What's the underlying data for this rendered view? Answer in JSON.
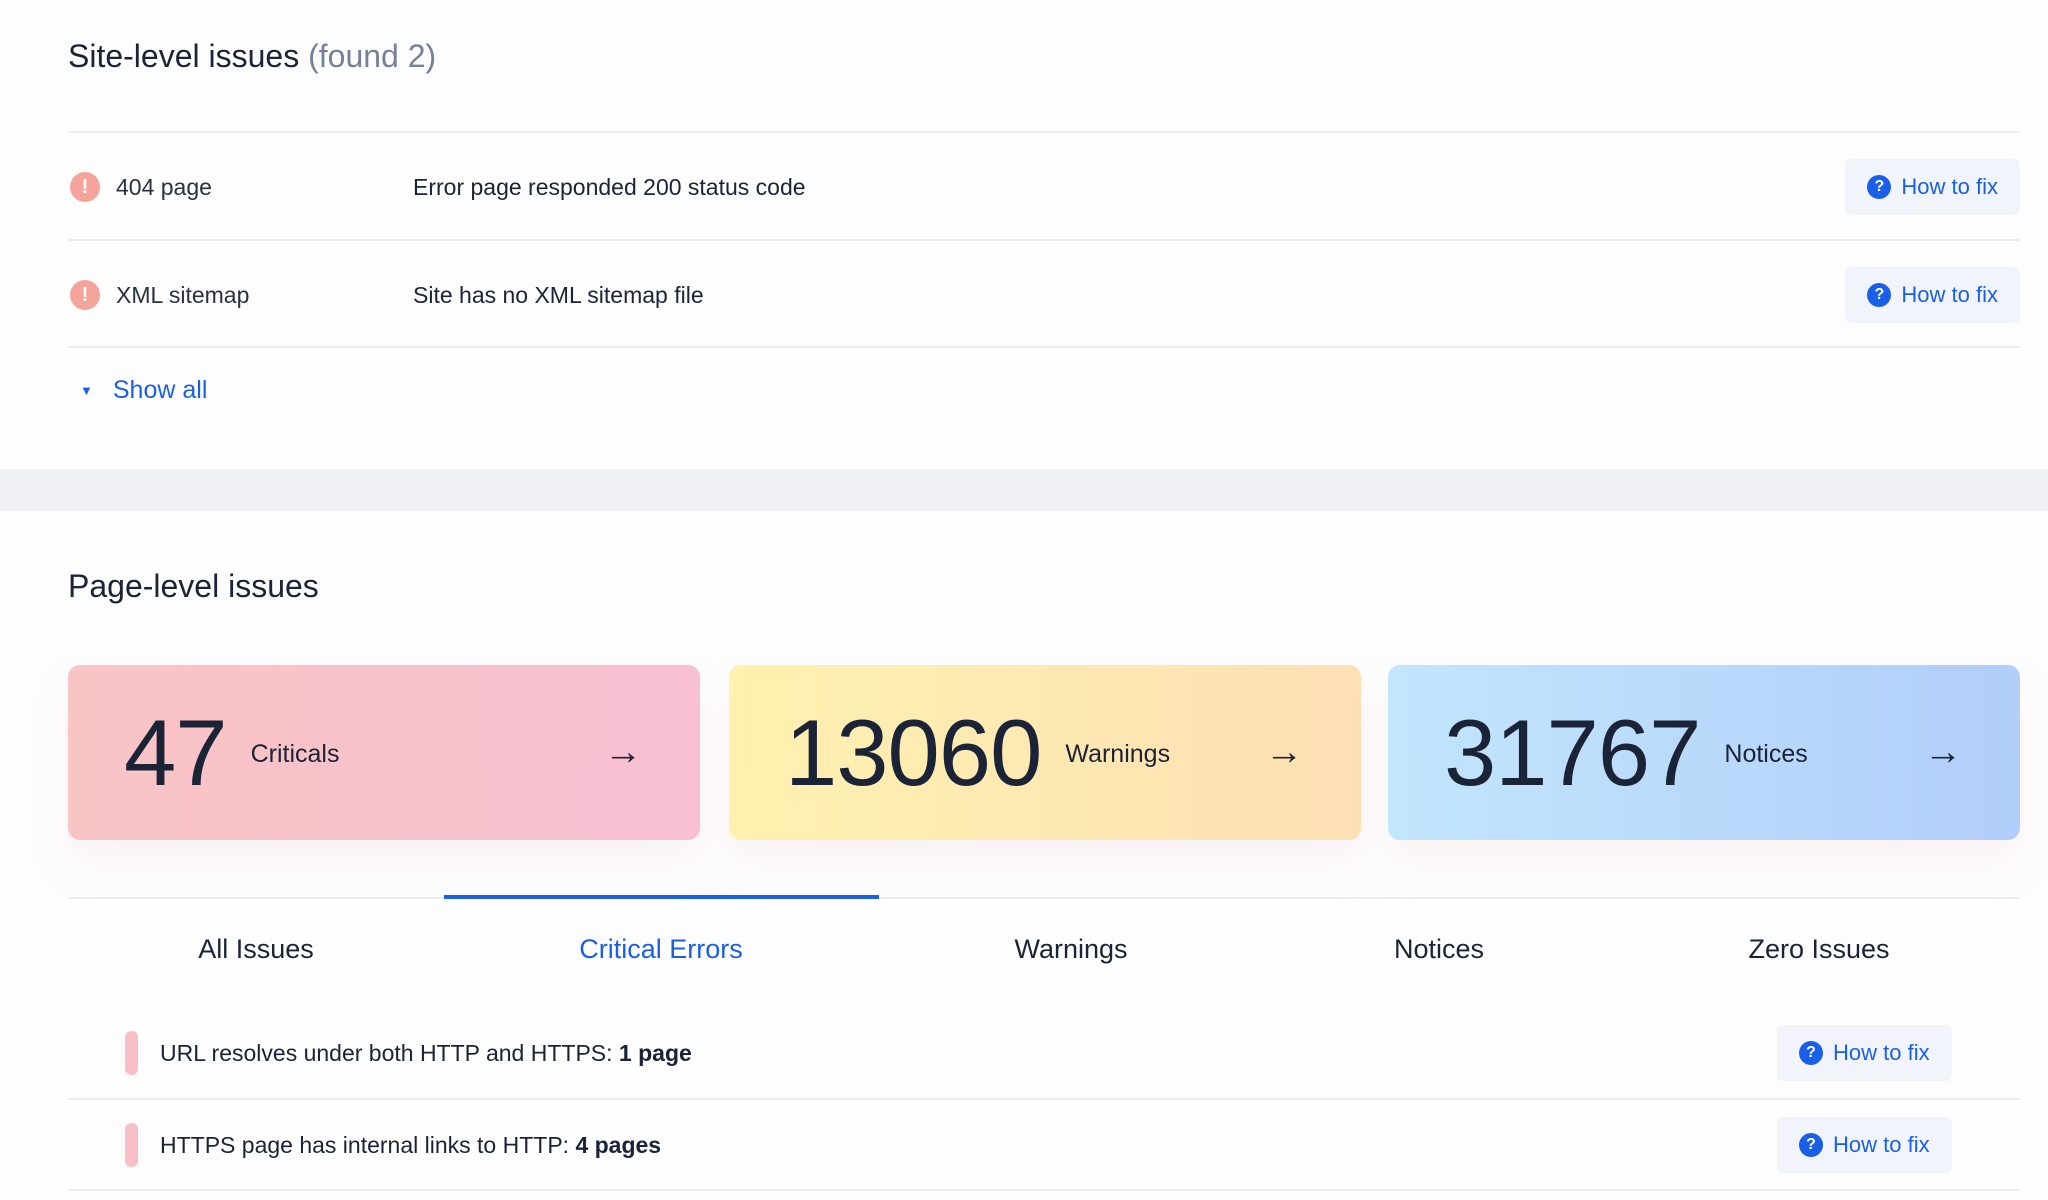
{
  "site": {
    "title": "Site-level issues",
    "count_text": "(found 2)",
    "issues": [
      {
        "name": "404 page",
        "description": "Error page responded 200 status code",
        "fix_label": "How to fix"
      },
      {
        "name": "XML sitemap",
        "description": "Site has no XML sitemap file",
        "fix_label": "How to fix"
      }
    ],
    "show_all": "Show all"
  },
  "page": {
    "title": "Page-level issues",
    "cards": [
      {
        "value": "47",
        "label": "Criticals",
        "gradient": [
          "#f9c4c4",
          "#f8c0d2"
        ]
      },
      {
        "value": "13060",
        "label": "Warnings",
        "gradient": [
          "#fff1b0",
          "#fde0b4"
        ]
      },
      {
        "value": "31767",
        "label": "Notices",
        "gradient": [
          "#c2e6fc",
          "#b2cdfa"
        ]
      }
    ],
    "tabs": [
      "All Issues",
      "Critical Errors",
      "Warnings",
      "Notices",
      "Zero Issues"
    ],
    "active_tab": "Critical Errors",
    "issues": [
      {
        "text": "URL resolves under both HTTP and HTTPS: ",
        "count": "1 page",
        "fix_label": "How to fix"
      },
      {
        "text": "HTTPS page has internal links to HTTP: ",
        "count": "4 pages",
        "fix_label": "How to fix"
      }
    ]
  },
  "colors": {
    "accent": "#1a5fe8",
    "critical": "#f5a49b"
  }
}
